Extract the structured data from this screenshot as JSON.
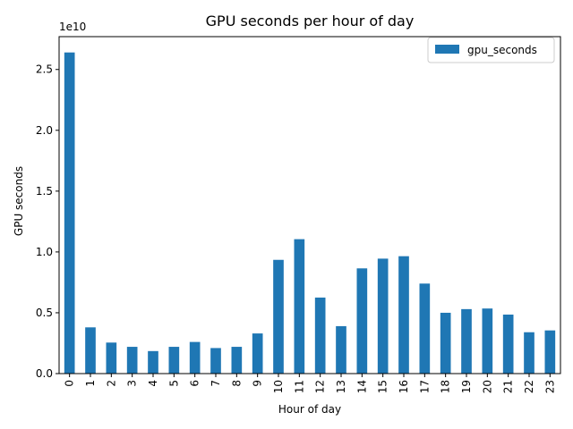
{
  "chart_data": {
    "type": "bar",
    "title": "GPU seconds per hour of day",
    "xlabel": "Hour of day",
    "ylabel": "GPU seconds",
    "offset_label": "1e10",
    "categories": [
      "0",
      "1",
      "2",
      "3",
      "4",
      "5",
      "6",
      "7",
      "8",
      "9",
      "10",
      "11",
      "12",
      "13",
      "14",
      "15",
      "16",
      "17",
      "18",
      "19",
      "20",
      "21",
      "22",
      "23"
    ],
    "series": [
      {
        "name": "gpu_seconds",
        "color": "#1f77b4",
        "values": [
          26400000000.0,
          3800000000.0,
          2550000000.0,
          2200000000.0,
          1850000000.0,
          2200000000.0,
          2600000000.0,
          2100000000.0,
          2200000000.0,
          3300000000.0,
          9350000000.0,
          11050000000.0,
          6250000000.0,
          3900000000.0,
          8650000000.0,
          9450000000.0,
          9650000000.0,
          7400000000.0,
          5000000000.0,
          5300000000.0,
          5350000000.0,
          4850000000.0,
          3400000000.0,
          3550000000.0
        ]
      }
    ],
    "yticks": [
      0,
      5000000000.0,
      10000000000.0,
      15000000000.0,
      20000000000.0,
      25000000000.0
    ],
    "ytick_labels": [
      "0.0",
      "0.5",
      "1.0",
      "1.5",
      "2.0",
      "2.5"
    ],
    "ylim": [
      0,
      27700000000.0
    ],
    "grid": false,
    "legend_position": "top-right"
  }
}
